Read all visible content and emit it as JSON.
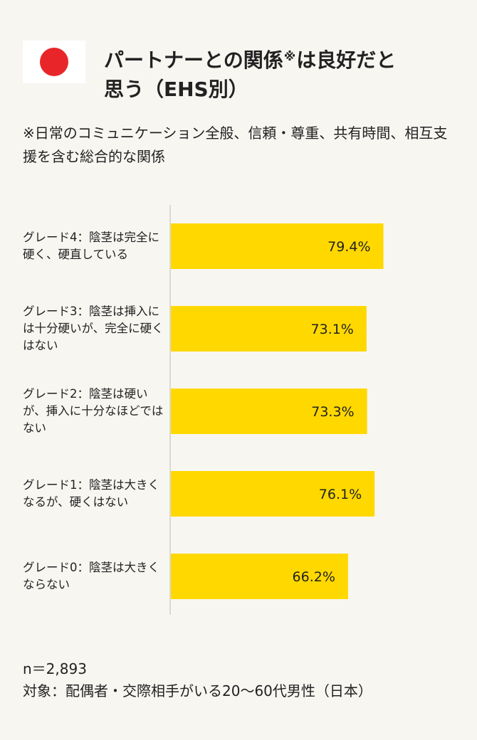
{
  "header": {
    "title_line1": "パートナーとの関係",
    "title_mark": "※",
    "title_line1_end": "は良好だと",
    "title_line2": "思う（EHS別）",
    "flag_colors": {
      "field": "#ffffff",
      "sun": "#e8262a"
    }
  },
  "note": "※日常のコミュニケーション全般、信頼・尊重、共有時間、相互支援を含む総合的な関係",
  "chart_data": {
    "type": "bar",
    "orientation": "horizontal",
    "categories": [
      "グレード4：陰茎は完全に硬く、硬直している",
      "グレード3：陰茎は挿入には十分硬いが、完全に硬くはない",
      "グレード2：陰茎は硬いが、挿入に十分なほどではない",
      "グレード1：陰茎は大きくなるが、硬くはない",
      "グレード0：陰茎は大きくならない"
    ],
    "values": [
      79.4,
      73.1,
      73.3,
      76.1,
      66.2
    ],
    "value_labels": [
      "79.4%",
      "73.1%",
      "73.3%",
      "76.1%",
      "66.2%"
    ],
    "unit": "%",
    "xlim": [
      0,
      100
    ],
    "bar_color": "#ffd800",
    "axis_color": "#cfcfcf"
  },
  "footer": {
    "n": "n＝2,893",
    "target": "対象：配偶者・交際相手がいる20～60代男性（日本）"
  }
}
